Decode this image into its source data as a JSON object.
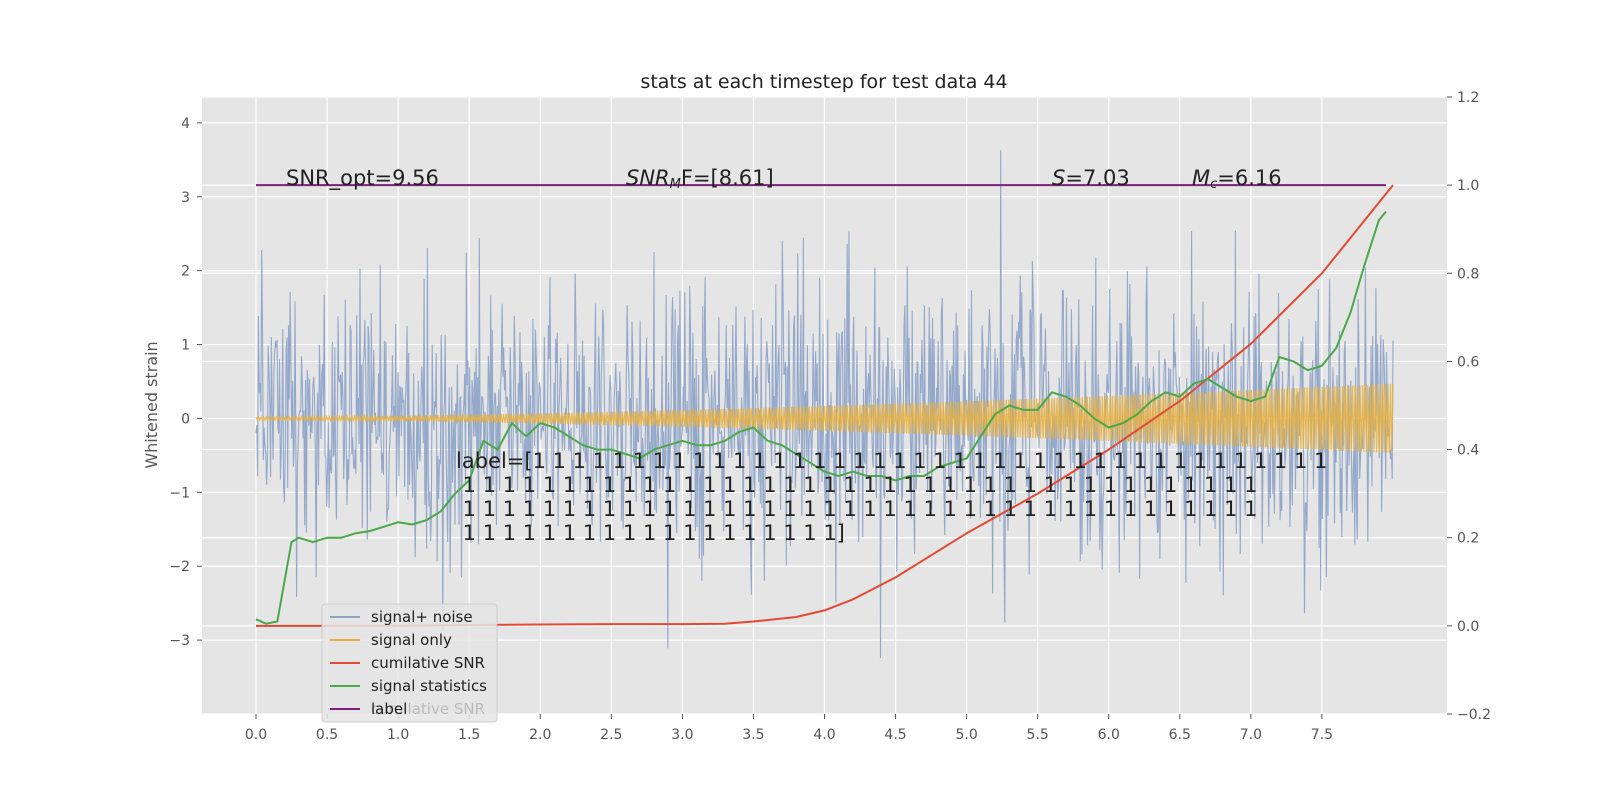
{
  "chart_data": {
    "type": "line",
    "title": "stats at each timestep for test data 44",
    "ylabel_left": "Whitened strain",
    "ylabel_right": "",
    "xlabel": "",
    "x_ticks": [
      "0.0",
      "0.5",
      "1.0",
      "1.5",
      "2.0",
      "2.5",
      "3.0",
      "3.5",
      "4.0",
      "4.5",
      "5.0",
      "5.5",
      "6.0",
      "6.5",
      "7.0",
      "7.5"
    ],
    "y_left_ticks": [
      "4",
      "3",
      "2",
      "1",
      "0",
      "−1",
      "−2",
      "−3"
    ],
    "y_right_ticks": [
      "1.2",
      "1.0",
      "0.8",
      "0.6",
      "0.4",
      "0.2",
      "0.0",
      "−0.2"
    ],
    "xlim": [
      -0.38,
      8.38
    ],
    "ylim_left": [
      -4.0,
      4.35
    ],
    "ylim_right": [
      -0.2,
      1.2
    ],
    "grid": true,
    "legend_position": "lower-left",
    "annotations": {
      "snr_opt": "SNR_opt=9.56",
      "snr_mf_sym": "SNR",
      "snr_mf_sub": "M",
      "snr_mf_rest": "F=[8.61]",
      "s_sym": "S",
      "s_rest": "=7.03",
      "mc_sym": "M",
      "mc_sub": "c",
      "mc_rest": "=6.16"
    },
    "label_text_lines": [
      "label=[1 1 1 1 1 1 1 1 1 1 1 1 1 1 1 1 1 1 1 1 1 1 1 1 1 1 1 1 1 1 1 1 1 1 1 1 1 1 1 1",
      " 1 1 1 1 1 1 1 1 1 1 1 1 1 1 1 1 1 1 1 1 1 1 1 1 1 1 1 1 1 1 1 1 1 1 1 1 1 1 1 1",
      " 1 1 1 1 1 1 1 1 1 1 1 1 1 1 1 1 1 1 1 1 1 1 1 1 1 1 1 1 1 1 1 1 1 1 1 1 1 1 1 1",
      " 1 1 1 1 1 1 1 1 1 1 1 1 1 1 1 1 1 1 1]"
    ],
    "legend_ghost": "cumilative SNR",
    "series": [
      {
        "name": "signal+ noise",
        "color": "#8fa4c8",
        "axis": "left",
        "kind": "noise",
        "x_range": [
          0.0,
          8.0
        ],
        "sigma": 1.0,
        "range": [
          -3.5,
          4.0
        ]
      },
      {
        "name": "signal only",
        "color": "#e8b040",
        "axis": "left",
        "kind": "chirp",
        "x_range": [
          0.0,
          8.0
        ],
        "amplitude_start": 0.0,
        "amplitude_end": 0.45
      },
      {
        "name": "cumilative SNR",
        "color": "#e24a33",
        "axis": "right",
        "x": [
          0.0,
          0.5,
          1.0,
          1.5,
          2.0,
          2.5,
          3.0,
          3.3,
          3.5,
          3.8,
          4.0,
          4.2,
          4.5,
          5.0,
          5.5,
          6.0,
          6.5,
          7.0,
          7.5,
          8.0
        ],
        "y": [
          0.0,
          0.0,
          0.0,
          0.002,
          0.003,
          0.004,
          0.004,
          0.005,
          0.01,
          0.02,
          0.035,
          0.06,
          0.11,
          0.21,
          0.3,
          0.4,
          0.51,
          0.64,
          0.8,
          1.0
        ]
      },
      {
        "name": "signal statistics",
        "color": "#4aa84a",
        "axis": "right",
        "x": [
          0.0,
          0.07,
          0.15,
          0.25,
          0.3,
          0.4,
          0.5,
          0.6,
          0.7,
          0.8,
          0.9,
          1.0,
          1.1,
          1.2,
          1.3,
          1.4,
          1.5,
          1.6,
          1.7,
          1.8,
          1.9,
          2.0,
          2.1,
          2.2,
          2.3,
          2.4,
          2.5,
          2.6,
          2.7,
          2.8,
          2.9,
          3.0,
          3.1,
          3.2,
          3.3,
          3.4,
          3.5,
          3.6,
          3.7,
          3.8,
          3.9,
          4.0,
          4.1,
          4.2,
          4.3,
          4.4,
          4.5,
          4.6,
          4.7,
          4.8,
          4.9,
          5.0,
          5.1,
          5.2,
          5.3,
          5.4,
          5.5,
          5.6,
          5.7,
          5.8,
          5.9,
          6.0,
          6.1,
          6.2,
          6.3,
          6.4,
          6.5,
          6.6,
          6.7,
          6.8,
          6.9,
          7.0,
          7.1,
          7.2,
          7.3,
          7.4,
          7.5,
          7.6,
          7.7,
          7.8,
          7.9,
          7.95
        ],
        "y": [
          0.015,
          0.005,
          0.01,
          0.19,
          0.2,
          0.19,
          0.2,
          0.2,
          0.21,
          0.215,
          0.225,
          0.235,
          0.23,
          0.24,
          0.26,
          0.3,
          0.33,
          0.42,
          0.4,
          0.46,
          0.43,
          0.46,
          0.45,
          0.43,
          0.41,
          0.4,
          0.4,
          0.39,
          0.38,
          0.4,
          0.41,
          0.42,
          0.41,
          0.41,
          0.42,
          0.44,
          0.45,
          0.42,
          0.41,
          0.39,
          0.37,
          0.35,
          0.34,
          0.35,
          0.34,
          0.34,
          0.33,
          0.34,
          0.34,
          0.36,
          0.37,
          0.38,
          0.43,
          0.48,
          0.5,
          0.49,
          0.49,
          0.53,
          0.52,
          0.5,
          0.47,
          0.45,
          0.46,
          0.48,
          0.51,
          0.53,
          0.52,
          0.55,
          0.56,
          0.54,
          0.52,
          0.51,
          0.52,
          0.61,
          0.6,
          0.58,
          0.59,
          0.63,
          0.71,
          0.82,
          0.92,
          0.94
        ]
      },
      {
        "name": "label",
        "color": "#7b1f7b",
        "axis": "right",
        "x": [
          0.0,
          7.95
        ],
        "y": [
          1.0,
          1.0
        ]
      }
    ]
  }
}
